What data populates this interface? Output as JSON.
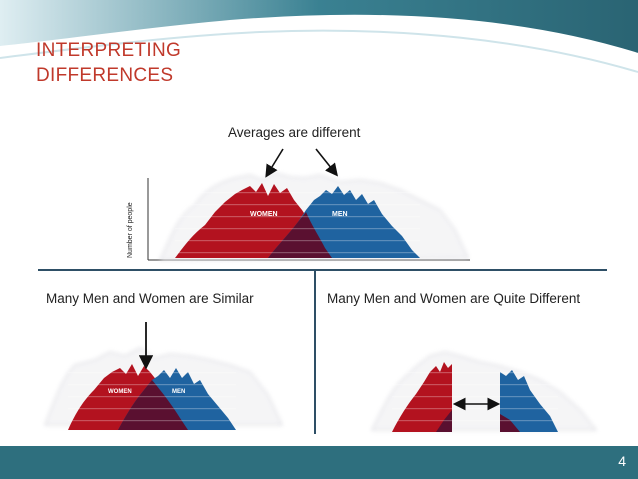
{
  "slide": {
    "title_line1": "INTERPRETING",
    "title_line2": "DIFFERENCES",
    "page_number": "4"
  },
  "top_panel": {
    "caption": "Averages are different",
    "y_axis_label": "Number of people",
    "women_label": "WOMEN",
    "men_label": "MEN"
  },
  "left_panel": {
    "caption": "Many Men and Women are Similar",
    "women_label": "WOMEN",
    "men_label": "MEN"
  },
  "right_panel": {
    "caption": "Many Men and Women are Quite Different"
  },
  "colors": {
    "women": "#b3121f",
    "men": "#1f63a0",
    "overlap": "#5a1030",
    "title": "#c0392b",
    "header_band": "#2e6f7e",
    "footer": "#2e6f7e"
  }
}
